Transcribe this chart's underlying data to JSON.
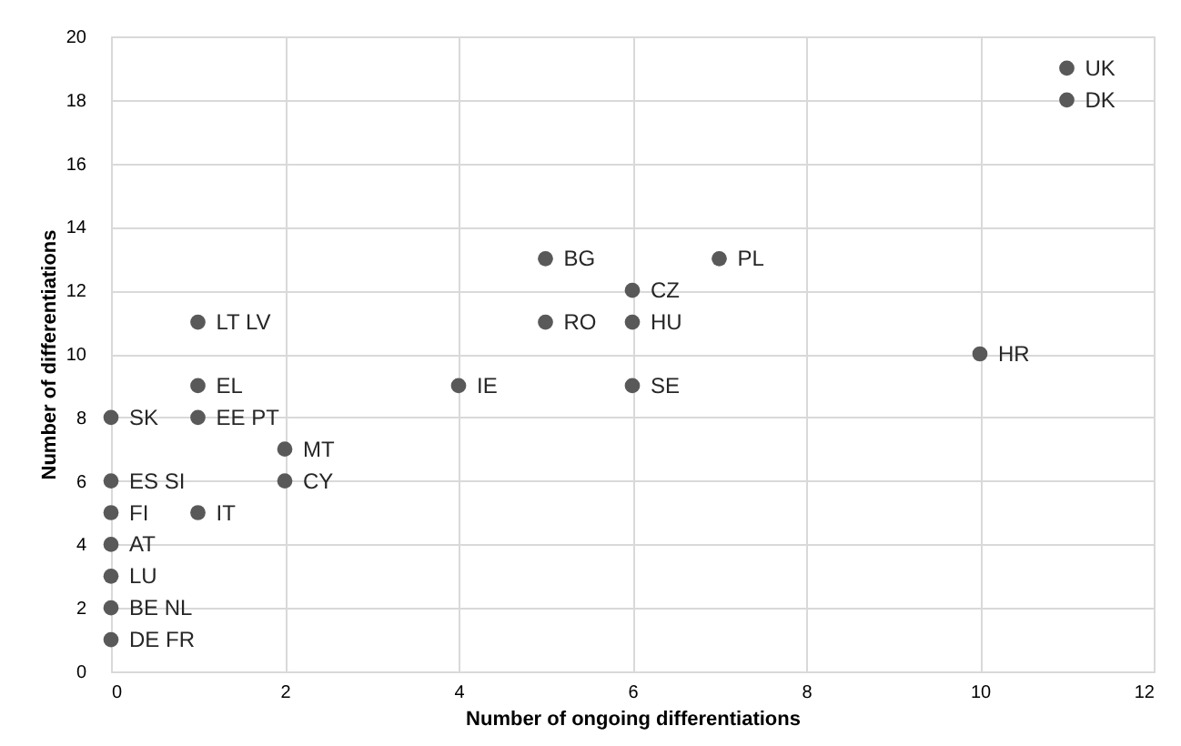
{
  "chart_data": {
    "type": "scatter",
    "xlabel": "Number of ongoing differentiations",
    "ylabel": "Number of differentiations",
    "x": [
      11,
      11,
      5,
      7,
      6,
      5,
      6,
      1,
      10,
      4,
      6,
      1,
      0,
      1,
      2,
      2,
      0,
      1,
      0,
      0,
      0,
      0,
      0
    ],
    "series": [
      {
        "color": "#595959",
        "values": [
          19,
          18,
          13,
          13,
          12,
          11,
          11,
          11,
          10,
          9,
          9,
          9,
          8,
          8,
          7,
          6,
          6,
          5,
          5,
          4,
          3,
          2,
          1
        ],
        "value_labels": [
          "UK",
          "DK",
          "BG",
          "PL",
          "CZ",
          "RO",
          "HU",
          "LT LV",
          "HR",
          "IE",
          "SE",
          "EL",
          "SK",
          "EE PT",
          "MT",
          "CY",
          "ES SI",
          "IT",
          "FI",
          "AT",
          "LU",
          "BE NL",
          "DE FR"
        ]
      }
    ],
    "xlim": [
      0,
      12
    ],
    "xticks": [
      0,
      2,
      4,
      6,
      8,
      10,
      12
    ],
    "ylim": [
      0,
      20
    ],
    "yticks": [
      0,
      2,
      4,
      6,
      8,
      10,
      12,
      14,
      16,
      18,
      20
    ],
    "grid": true,
    "marker": "circle",
    "legend": false
  }
}
